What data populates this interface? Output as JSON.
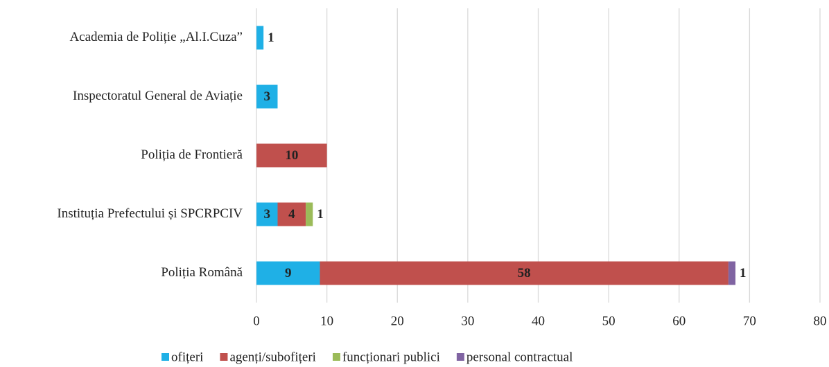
{
  "chart_data": {
    "type": "bar",
    "orientation": "horizontal",
    "stacked": true,
    "categories": [
      "Academia de Poliție „Al.I.Cuza”",
      "Inspectoratul General de Aviație",
      "Poliția de Frontieră",
      "Instituția Prefectului și SPCRPCIV",
      "Poliția Română"
    ],
    "series": [
      {
        "name": "ofițeri",
        "color": "#1fb0e6",
        "values": [
          1,
          3,
          null,
          3,
          9
        ]
      },
      {
        "name": "agenți/subofițeri",
        "color": "#c0504d",
        "values": [
          null,
          null,
          10,
          4,
          58
        ]
      },
      {
        "name": "funcționari publici",
        "color": "#9bbb59",
        "values": [
          null,
          null,
          null,
          1,
          null
        ]
      },
      {
        "name": "personal contractual",
        "color": "#8064a2",
        "values": [
          null,
          null,
          null,
          null,
          1
        ]
      }
    ],
    "xlim": [
      0,
      80
    ],
    "xticks": [
      0,
      10,
      20,
      30,
      40,
      50,
      60,
      70,
      80
    ],
    "grid": true,
    "legend": "bottom"
  }
}
